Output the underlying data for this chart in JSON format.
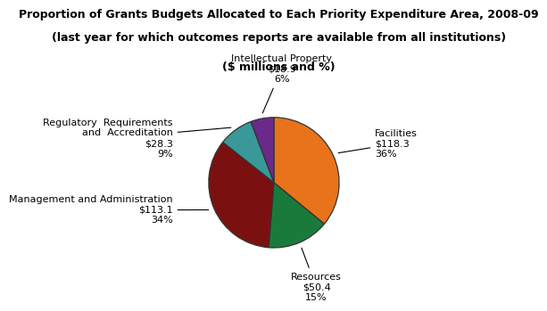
{
  "title_line1": "Proportion of Grants Budgets Allocated to Each Priority Expenditure Area, 2008-09",
  "title_line2": "(last year for which outcomes reports are available from all institutions)",
  "subtitle": "($ millions and %)",
  "slices": [
    {
      "label": "Facilities",
      "value": 118.3,
      "pct": 36,
      "color": "#E8731A"
    },
    {
      "label": "Resources",
      "value": 50.4,
      "pct": 15,
      "color": "#1A7A3C"
    },
    {
      "label": "Management and Administration",
      "value": 113.1,
      "pct": 34,
      "color": "#7B1010"
    },
    {
      "label": "Regulatory  Requirements\nand  Accreditation",
      "value": 28.3,
      "pct": 9,
      "color": "#3A9898"
    },
    {
      "label": "Intellectual Property",
      "value": 18.9,
      "pct": 6,
      "color": "#6B2A8A"
    }
  ],
  "startangle": 90,
  "bg_color": "#ffffff",
  "title_fontsize": 9,
  "subtitle_fontsize": 9,
  "label_fontsize": 8
}
